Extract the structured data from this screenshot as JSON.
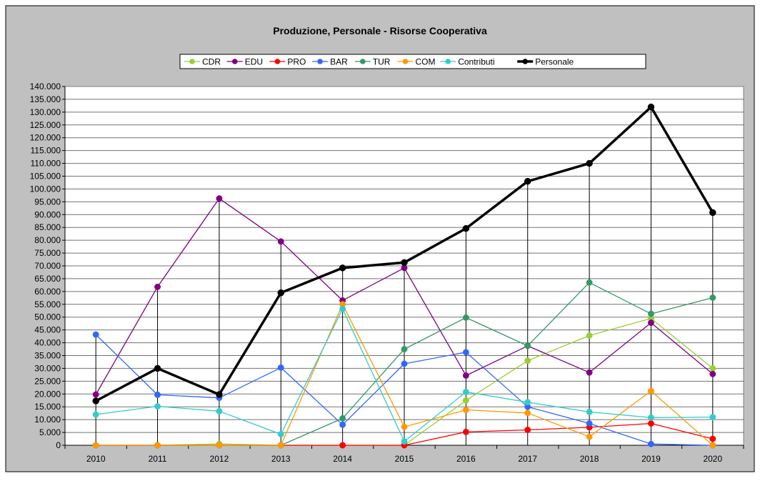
{
  "chart_data": {
    "type": "line",
    "title": "Produzione, Personale - Risorse Cooperativa",
    "xlabel": "",
    "ylabel": "",
    "x": [
      "2010",
      "2011",
      "2012",
      "2013",
      "2014",
      "2015",
      "2016",
      "2017",
      "2018",
      "2019",
      "2020"
    ],
    "ylim": [
      0,
      140000
    ],
    "ytick_step": 5000,
    "ytick_labels": [
      "0",
      "5.000",
      "10.000",
      "15.000",
      "20.000",
      "25.000",
      "30.000",
      "35.000",
      "40.000",
      "45.000",
      "50.000",
      "55.000",
      "60.000",
      "65.000",
      "70.000",
      "75.000",
      "80.000",
      "85.000",
      "90.000",
      "95.000",
      "100.000",
      "105.000",
      "110.000",
      "115.000",
      "120.000",
      "125.000",
      "130.000",
      "135.000",
      "140.000"
    ],
    "grid": true,
    "drop_lines": true,
    "legend_position": "top",
    "plot_background": "#ffffff",
    "frame_background": "#c0c0c0",
    "series": [
      {
        "name": "CDR",
        "color": "#9acd32",
        "values": [
          0,
          0,
          500,
          0,
          0,
          0,
          17500,
          33000,
          42800,
          49500,
          30000
        ]
      },
      {
        "name": "EDU",
        "color": "#800080",
        "values": [
          19800,
          61800,
          96300,
          79500,
          56500,
          69200,
          27200,
          38800,
          28400,
          47800,
          27800
        ]
      },
      {
        "name": "PRO",
        "color": "#ff0000",
        "values": [
          0,
          0,
          0,
          0,
          0,
          0,
          5200,
          6000,
          7000,
          8500,
          2500
        ]
      },
      {
        "name": "BAR",
        "color": "#3366ff",
        "values": [
          43200,
          19700,
          18500,
          30300,
          8000,
          31800,
          36300,
          15000,
          8500,
          500,
          0
        ]
      },
      {
        "name": "TUR",
        "color": "#339966",
        "values": [
          0,
          0,
          0,
          0,
          10500,
          37500,
          49800,
          38800,
          63500,
          51300,
          57600
        ]
      },
      {
        "name": "COM",
        "color": "#ff9900",
        "values": [
          0,
          0,
          0,
          0,
          55000,
          7200,
          13800,
          12600,
          3300,
          21200,
          0
        ]
      },
      {
        "name": "Contributi",
        "color": "#33cccc",
        "values": [
          12000,
          15200,
          13300,
          4300,
          53200,
          1500,
          20800,
          16800,
          13000,
          10800,
          11000
        ]
      },
      {
        "name": "Personale",
        "color": "#000000",
        "values": [
          17300,
          30000,
          19800,
          59500,
          69200,
          71300,
          84600,
          103000,
          110000,
          132000,
          90800
        ]
      }
    ]
  }
}
